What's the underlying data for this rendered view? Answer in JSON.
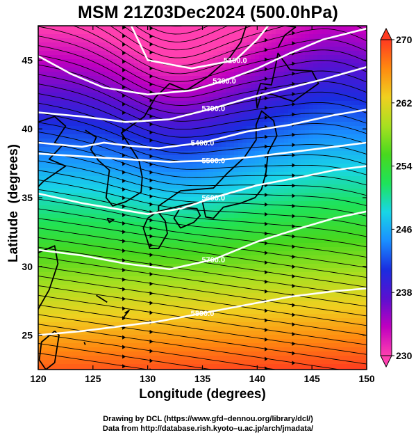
{
  "chart_data": {
    "type": "heatmap",
    "title": "MSM 21Z03Dec2024 (500.0hPa)",
    "xlabel": "Longitude (degrees)",
    "ylabel": "Latitude  (degrees)",
    "xlim": [
      120,
      150
    ],
    "ylim": [
      22.5,
      47.5
    ],
    "x_ticks": [
      120,
      125,
      130,
      135,
      140,
      145,
      150
    ],
    "y_ticks": [
      25,
      30,
      35,
      40,
      45
    ],
    "colorbar": {
      "min": 230,
      "max": 270,
      "ticks": [
        230,
        238,
        246,
        254,
        262,
        270
      ],
      "colors": [
        "#ff3fb0",
        "#c000c0",
        "#5a10d0",
        "#1a2de0",
        "#1a8fff",
        "#19d6e6",
        "#1ee35a",
        "#48d81e",
        "#a8e020",
        "#f0d020",
        "#ff8a10",
        "#ff3a20"
      ]
    },
    "contours": [
      {
        "label": "5100.0",
        "points": [
          [
            128.5,
            47.5
          ],
          [
            130.0,
            45.0
          ],
          [
            134.0,
            44.4
          ],
          [
            138.0,
            45.0
          ],
          [
            140.0,
            46.5
          ],
          [
            141.0,
            47.5
          ]
        ]
      },
      {
        "label": "5200.0",
        "points": [
          [
            120.0,
            45.3
          ],
          [
            123.0,
            44.0
          ],
          [
            126.0,
            43.0
          ],
          [
            130.0,
            42.5
          ],
          [
            134.0,
            42.8
          ],
          [
            137.0,
            43.5
          ],
          [
            140.0,
            44.4
          ],
          [
            143.0,
            45.5
          ],
          [
            146.0,
            46.5
          ],
          [
            150.0,
            47.3
          ]
        ]
      },
      {
        "label": "5300.0",
        "points": [
          [
            120.0,
            41.2
          ],
          [
            124.0,
            40.9
          ],
          [
            128.0,
            40.5
          ],
          [
            132.0,
            40.7
          ],
          [
            136.0,
            41.5
          ],
          [
            139.0,
            42.2
          ],
          [
            142.0,
            42.8
          ],
          [
            146.0,
            43.6
          ],
          [
            150.0,
            44.5
          ]
        ]
      },
      {
        "label": "5400.0",
        "points": [
          [
            120.0,
            39.0
          ],
          [
            124.0,
            38.7
          ],
          [
            126.0,
            39.0
          ],
          [
            128.0,
            38.8
          ],
          [
            131.0,
            38.6
          ],
          [
            135.0,
            39.0
          ],
          [
            139.0,
            39.8
          ],
          [
            143.0,
            40.3
          ],
          [
            147.0,
            41.0
          ],
          [
            150.0,
            41.4
          ]
        ]
      },
      {
        "label": "5500.0",
        "points": [
          [
            120.0,
            38.2
          ],
          [
            124.0,
            38.0
          ],
          [
            128.0,
            37.8
          ],
          [
            132.0,
            37.6
          ],
          [
            136.0,
            37.7
          ],
          [
            140.0,
            38.0
          ],
          [
            144.0,
            38.4
          ],
          [
            147.0,
            38.7
          ],
          [
            150.0,
            39.0
          ]
        ]
      },
      {
        "label": "5600.0",
        "points": [
          [
            120.0,
            35.3
          ],
          [
            124.0,
            34.6
          ],
          [
            127.0,
            34.2
          ],
          [
            130.0,
            33.8
          ],
          [
            133.0,
            34.2
          ],
          [
            136.0,
            35.0
          ],
          [
            140.0,
            35.9
          ],
          [
            144.0,
            36.5
          ],
          [
            147.0,
            37.0
          ],
          [
            150.0,
            37.3
          ]
        ]
      },
      {
        "label": "5700.0",
        "points": [
          [
            120.0,
            31.2
          ],
          [
            124.0,
            30.8
          ],
          [
            128.0,
            30.2
          ],
          [
            132.0,
            29.8
          ],
          [
            136.0,
            30.5
          ],
          [
            140.0,
            31.8
          ],
          [
            144.0,
            32.8
          ],
          [
            147.0,
            33.5
          ],
          [
            150.0,
            34.0
          ]
        ]
      },
      {
        "label": "5800.0",
        "points": [
          [
            120.0,
            25.0
          ],
          [
            124.0,
            25.3
          ],
          [
            128.0,
            25.7
          ],
          [
            131.0,
            26.0
          ],
          [
            135.0,
            26.6
          ],
          [
            139.0,
            27.2
          ],
          [
            143.0,
            27.8
          ],
          [
            147.0,
            28.2
          ],
          [
            150.0,
            28.4
          ]
        ]
      }
    ],
    "grid": false,
    "overlays": [
      "coastlines",
      "wind streamlines with arrows",
      "geopotential height contours (white)"
    ]
  },
  "credits": {
    "line1": "Drawing by DCL (https://www.gfd–dennou.org/library/dcl/)",
    "line2": "Data from http://database.rish.kyoto–u.ac.jp/arch/jmadata/"
  }
}
